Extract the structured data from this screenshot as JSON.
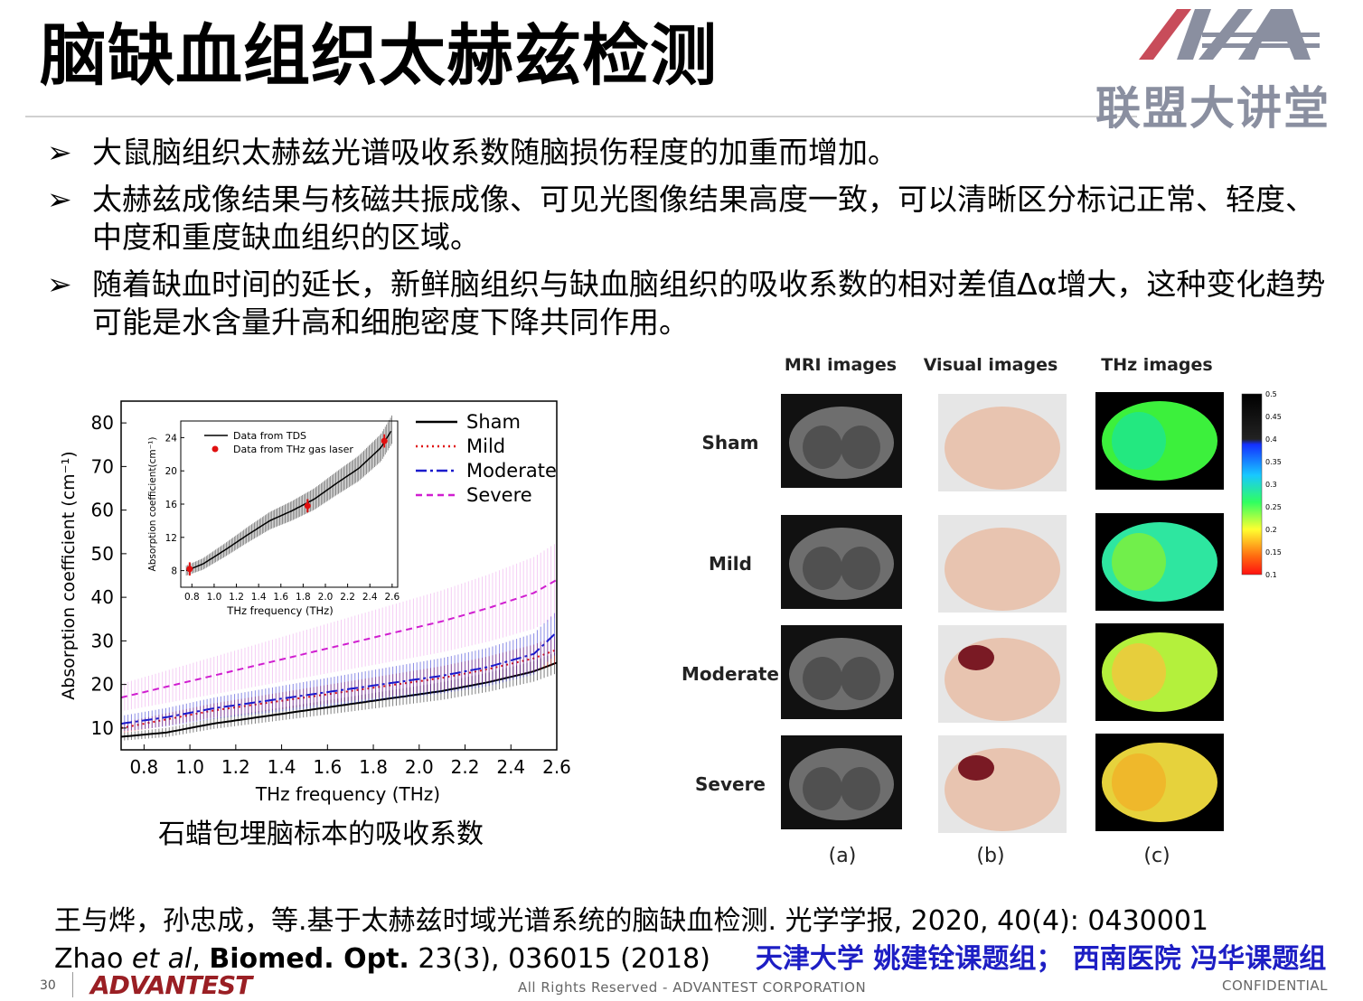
{
  "title": "脑缺血组织太赫兹检测",
  "logo": {
    "text": "联盟大讲堂"
  },
  "bullets": [
    "大鼠脑组织太赫兹光谱吸收系数随脑损伤程度的加重而增加。",
    "太赫兹成像结果与核磁共振成像、可见光图像结果高度一致，可以清晰区分标记正常、轻度、中度和重度缺血组织的区域。",
    "随着缺血时间的延长，新鲜脑组织与缺血脑组织的吸收系数的相对差值Δα增大，这种变化趋势可能是水含量升高和细胞密度下降共同作用。"
  ],
  "bullet_marker": "➢",
  "chart_data": [
    {
      "type": "line",
      "xlabel": "THz frequency (THz)",
      "ylabel": "Absorption coefficient (cm⁻¹)",
      "xlim": [
        0.7,
        2.6
      ],
      "ylim": [
        5,
        85
      ],
      "x_ticks": [
        "0.8",
        "1.0",
        "1.2",
        "1.4",
        "1.6",
        "1.8",
        "2.0",
        "2.2",
        "2.4",
        "2.6"
      ],
      "y_ticks": [
        "10",
        "20",
        "30",
        "40",
        "50",
        "60",
        "70",
        "80"
      ],
      "legend_position": "top-right",
      "x": [
        0.7,
        0.9,
        1.1,
        1.3,
        1.5,
        1.7,
        1.9,
        2.1,
        2.3,
        2.5,
        2.6
      ],
      "series": [
        {
          "name": "Sham",
          "color": "#000000",
          "style": "solid",
          "values": [
            8,
            9,
            11,
            12.5,
            14,
            15.5,
            17,
            18.5,
            20.5,
            23,
            25
          ]
        },
        {
          "name": "Mild",
          "color": "#e01010",
          "style": "dotted",
          "values": [
            10,
            12,
            14,
            15.5,
            17,
            18.5,
            20,
            21.5,
            23.5,
            26,
            28
          ]
        },
        {
          "name": "Moderate",
          "color": "#1a1acc",
          "style": "dashdot",
          "values": [
            11,
            12.5,
            14.5,
            16,
            17.5,
            19,
            20.5,
            22,
            24,
            27,
            32
          ]
        },
        {
          "name": "Severe",
          "color": "#d01ed0",
          "style": "dashed",
          "values": [
            17,
            19.5,
            22,
            24.5,
            27,
            29.5,
            32,
            34.5,
            37.5,
            41,
            44
          ]
        }
      ],
      "caption": "石蜡包埋脑标本的吸收系数"
    },
    {
      "type": "line",
      "xlabel": "THz frequency (THz)",
      "ylabel": "Absorption coefficient(cm⁻¹)",
      "xlim": [
        0.7,
        2.65
      ],
      "ylim": [
        6,
        26
      ],
      "x_ticks": [
        "0.8",
        "1.0",
        "1.2",
        "1.4",
        "1.6",
        "1.8",
        "2.0",
        "2.2",
        "2.4",
        "2.6"
      ],
      "y_ticks": [
        "8",
        "12",
        "16",
        "20",
        "24"
      ],
      "legend_position": "top-left",
      "x": [
        0.75,
        0.9,
        1.1,
        1.3,
        1.5,
        1.7,
        1.9,
        2.1,
        2.3,
        2.5,
        2.6
      ],
      "series": [
        {
          "name": "Data from TDS",
          "color": "#000000",
          "values": [
            8,
            8.8,
            10.5,
            12.3,
            14,
            15.2,
            16.6,
            18.5,
            20.3,
            22.8,
            25
          ]
        },
        {
          "name": "Data from THz gas laser",
          "color": "#e01010",
          "points": [
            [
              0.78,
              8.2
            ],
            [
              1.84,
              15.8
            ],
            [
              2.53,
              23.6
            ]
          ]
        }
      ]
    }
  ],
  "figure": {
    "col_headers": [
      "MRI images",
      "Visual images",
      "THz images"
    ],
    "row_labels": [
      "Sham",
      "Mild",
      "Moderate",
      "Severe"
    ],
    "panel_labels": [
      "(a)",
      "(b)",
      "(c)"
    ],
    "colorbar_ticks": [
      "0.5",
      "0.45",
      "0.4",
      "0.35",
      "0.3",
      "0.25",
      "0.2",
      "0.15",
      "0.1"
    ]
  },
  "refs": {
    "ref1": "王与烨，孙忠成，等.基于太赫兹时域光谱系统的脑缺血检测. 光学学报, 2020, 40(4): 0430001",
    "ref2_author": "Zhao ",
    "ref2_etal": "et al",
    "ref2_comma": ", ",
    "ref2_journal": "Biomed. Opt.",
    "ref2_rest": " 23(3), 036015 (2018)",
    "ref2_groups": "天津大学 姚建铨课题组；  西南医院 冯华课题组"
  },
  "footer": {
    "page_number": "30",
    "company_logo": "ADVANTEST",
    "rights": "All Rights Reserved - ADVANTEST CORPORATION",
    "confidential": "CONFIDENTIAL"
  }
}
